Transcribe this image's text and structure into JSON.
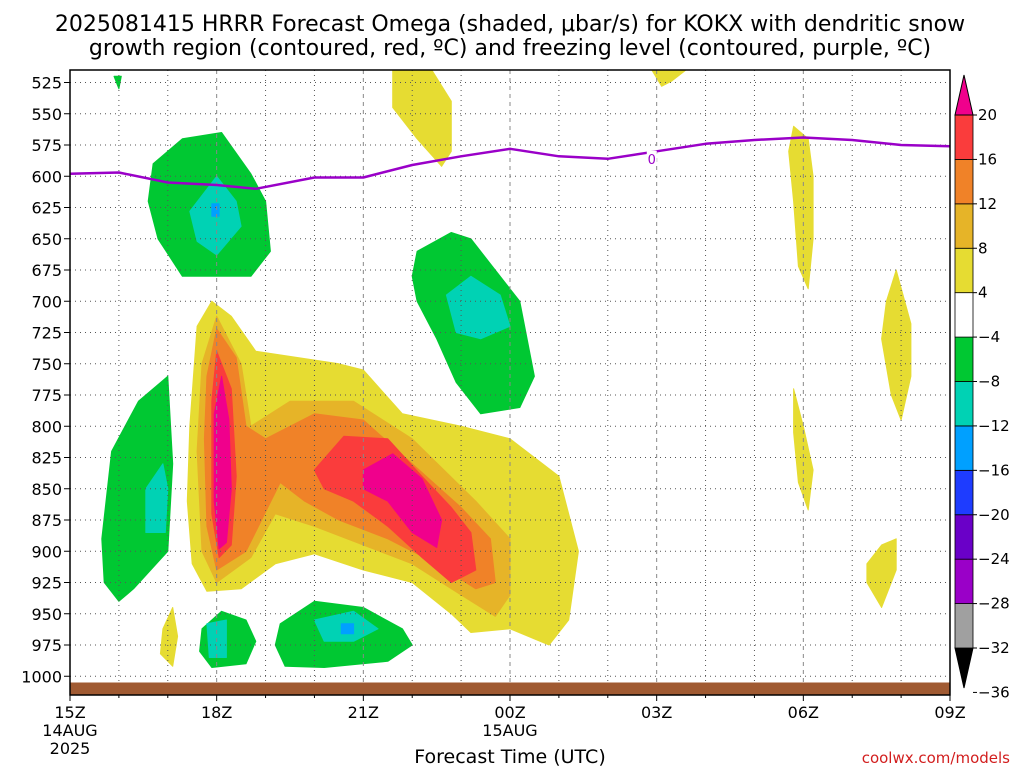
{
  "chart_data": {
    "type": "heatmap",
    "title_line1": "2025081415 HRRR Forecast Omega (shaded, μbar/s) for KOKX with dendritic snow",
    "title_line2": "growth region (contoured, red, ºC) and freezing level (contoured, purple, ºC)",
    "xlabel": "Forecast Time (UTC)",
    "ylabel": "",
    "x_range_hours": [
      0,
      18
    ],
    "y_range_hPa": [
      515,
      1015
    ],
    "y_ticks": [
      525,
      550,
      575,
      600,
      625,
      650,
      675,
      700,
      725,
      750,
      775,
      800,
      825,
      850,
      875,
      900,
      925,
      950,
      975,
      1000
    ],
    "x_ticks": [
      {
        "hour": 0,
        "label": "15Z",
        "sub1": "14AUG",
        "sub2": "2025"
      },
      {
        "hour": 3,
        "label": "18Z",
        "sub1": "",
        "sub2": ""
      },
      {
        "hour": 6,
        "label": "21Z",
        "sub1": "",
        "sub2": ""
      },
      {
        "hour": 9,
        "label": "00Z",
        "sub1": "15AUG",
        "sub2": ""
      },
      {
        "hour": 12,
        "label": "03Z",
        "sub1": "",
        "sub2": ""
      },
      {
        "hour": 15,
        "label": "06Z",
        "sub1": "",
        "sub2": ""
      },
      {
        "hour": 18,
        "label": "09Z",
        "sub1": "",
        "sub2": ""
      }
    ],
    "grid": true,
    "colorbar": {
      "bins": [
        {
          "color": "#000000"
        },
        {
          "color": "#a0a0a0"
        },
        {
          "color": "#9a00c8"
        },
        {
          "color": "#6a00c8"
        },
        {
          "color": "#1e3cff"
        },
        {
          "color": "#00a0ff"
        },
        {
          "color": "#00d2b4"
        },
        {
          "color": "#00c832"
        },
        {
          "color": "#ffffff"
        },
        {
          "color": "#e6dc32"
        },
        {
          "color": "#e6b428"
        },
        {
          "color": "#f08228"
        },
        {
          "color": "#fa3c3c"
        },
        {
          "color": "#f0008c"
        }
      ],
      "labels": [
        "20",
        "16",
        "12",
        "8",
        "4",
        "−4",
        "−8",
        "−12",
        "−16",
        "−20",
        "−24",
        "−28",
        "−32",
        "−36"
      ]
    },
    "freezing_level": {
      "color": "#9a00c8",
      "label": "0",
      "label_at": {
        "hour": 11.9,
        "p": 586
      },
      "points": [
        [
          0,
          598
        ],
        [
          1,
          597
        ],
        [
          2,
          605
        ],
        [
          3,
          607
        ],
        [
          3.8,
          610
        ],
        [
          5,
          601
        ],
        [
          6,
          601
        ],
        [
          7,
          591
        ],
        [
          8,
          584
        ],
        [
          9,
          578
        ],
        [
          10,
          584
        ],
        [
          11,
          586
        ],
        [
          12,
          580
        ],
        [
          13,
          574
        ],
        [
          14,
          571
        ],
        [
          15,
          569
        ],
        [
          16,
          571
        ],
        [
          17,
          575
        ],
        [
          18,
          576
        ]
      ]
    },
    "omega_regions": [
      {
        "color": "#e6dc32",
        "points": [
          [
            6.6,
            515
          ],
          [
            7.4,
            515
          ],
          [
            7.8,
            540
          ],
          [
            7.8,
            580
          ],
          [
            7.6,
            592
          ],
          [
            7.1,
            570
          ],
          [
            6.6,
            545
          ]
        ]
      },
      {
        "color": "#e6dc32",
        "points": [
          [
            11.9,
            515
          ],
          [
            12.6,
            515
          ],
          [
            12.3,
            524
          ],
          [
            12.1,
            528
          ]
        ]
      },
      {
        "color": "#e6dc32",
        "points": [
          [
            14.8,
            560
          ],
          [
            15.1,
            570
          ],
          [
            15.2,
            600
          ],
          [
            15.2,
            650
          ],
          [
            15.1,
            690
          ],
          [
            14.9,
            672
          ],
          [
            14.8,
            620
          ],
          [
            14.7,
            580
          ]
        ]
      },
      {
        "color": "#e6dc32",
        "points": [
          [
            16.9,
            675
          ],
          [
            17.2,
            718
          ],
          [
            17.2,
            760
          ],
          [
            17.0,
            795
          ],
          [
            16.8,
            775
          ],
          [
            16.6,
            730
          ],
          [
            16.7,
            700
          ]
        ]
      },
      {
        "color": "#e6dc32",
        "points": [
          [
            14.8,
            770
          ],
          [
            15.0,
            800
          ],
          [
            15.2,
            835
          ],
          [
            15.1,
            867
          ],
          [
            14.9,
            845
          ],
          [
            14.8,
            805
          ]
        ]
      },
      {
        "color": "#e6dc32",
        "points": [
          [
            16.3,
            910
          ],
          [
            16.6,
            895
          ],
          [
            16.9,
            890
          ],
          [
            16.9,
            915
          ],
          [
            16.6,
            945
          ],
          [
            16.3,
            925
          ]
        ]
      },
      {
        "color": "#e6dc32",
        "points": [
          [
            1.9,
            962
          ],
          [
            2.1,
            945
          ],
          [
            2.2,
            968
          ],
          [
            2.1,
            992
          ],
          [
            1.85,
            982
          ]
        ]
      },
      {
        "color": "#e6dc32",
        "points": [
          [
            2.45,
            800
          ],
          [
            2.6,
            720
          ],
          [
            2.9,
            700
          ],
          [
            3.3,
            712
          ],
          [
            3.8,
            740
          ],
          [
            5.5,
            750
          ],
          [
            6.0,
            755
          ],
          [
            6.8,
            790
          ],
          [
            8.0,
            800
          ],
          [
            9.0,
            810
          ],
          [
            10.0,
            840
          ],
          [
            10.4,
            900
          ],
          [
            10.2,
            955
          ],
          [
            9.8,
            975
          ],
          [
            9.0,
            962
          ],
          [
            8.2,
            965
          ],
          [
            7.8,
            950
          ],
          [
            7.0,
            925
          ],
          [
            6.0,
            915
          ],
          [
            5.0,
            902
          ],
          [
            4.2,
            910
          ],
          [
            3.5,
            930
          ],
          [
            2.8,
            932
          ],
          [
            2.5,
            910
          ],
          [
            2.4,
            860
          ]
        ]
      },
      {
        "color": "#e6b428",
        "points": [
          [
            2.7,
            750
          ],
          [
            3.0,
            712
          ],
          [
            3.5,
            750
          ],
          [
            3.7,
            800
          ],
          [
            4.5,
            780
          ],
          [
            5.8,
            780
          ],
          [
            7.0,
            810
          ],
          [
            8.3,
            860
          ],
          [
            9.0,
            890
          ],
          [
            9.0,
            935
          ],
          [
            8.7,
            952
          ],
          [
            8.0,
            935
          ],
          [
            7.0,
            910
          ],
          [
            6.0,
            895
          ],
          [
            5.0,
            880
          ],
          [
            4.2,
            870
          ],
          [
            3.7,
            905
          ],
          [
            3.0,
            925
          ],
          [
            2.7,
            900
          ],
          [
            2.6,
            820
          ]
        ]
      },
      {
        "color": "#f08228",
        "points": [
          [
            2.8,
            760
          ],
          [
            3.0,
            722
          ],
          [
            3.4,
            745
          ],
          [
            3.6,
            800
          ],
          [
            4.0,
            810
          ],
          [
            5.0,
            790
          ],
          [
            6.0,
            795
          ],
          [
            7.0,
            830
          ],
          [
            8.0,
            865
          ],
          [
            8.6,
            890
          ],
          [
            8.7,
            925
          ],
          [
            8.3,
            930
          ],
          [
            7.5,
            910
          ],
          [
            6.5,
            890
          ],
          [
            5.5,
            875
          ],
          [
            4.8,
            860
          ],
          [
            4.3,
            845
          ],
          [
            3.6,
            900
          ],
          [
            3.0,
            915
          ],
          [
            2.8,
            880
          ],
          [
            2.75,
            810
          ]
        ]
      },
      {
        "color": "#fa3c3c",
        "points": [
          [
            2.9,
            780
          ],
          [
            3.0,
            740
          ],
          [
            3.3,
            770
          ],
          [
            3.4,
            840
          ],
          [
            3.3,
            895
          ],
          [
            3.05,
            905
          ],
          [
            2.9,
            870
          ]
        ]
      },
      {
        "color": "#fa3c3c",
        "points": [
          [
            5.0,
            835
          ],
          [
            5.6,
            808
          ],
          [
            6.5,
            810
          ],
          [
            7.2,
            840
          ],
          [
            7.8,
            865
          ],
          [
            8.2,
            885
          ],
          [
            8.3,
            915
          ],
          [
            7.8,
            925
          ],
          [
            7.2,
            905
          ],
          [
            6.5,
            880
          ],
          [
            5.8,
            860
          ],
          [
            5.2,
            850
          ]
        ]
      },
      {
        "color": "#f0008c",
        "points": [
          [
            2.95,
            790
          ],
          [
            3.1,
            760
          ],
          [
            3.25,
            795
          ],
          [
            3.3,
            850
          ],
          [
            3.2,
            893
          ],
          [
            3.05,
            898
          ],
          [
            2.95,
            860
          ]
        ]
      },
      {
        "color": "#f0008c",
        "points": [
          [
            6.0,
            835
          ],
          [
            6.6,
            822
          ],
          [
            7.2,
            842
          ],
          [
            7.6,
            875
          ],
          [
            7.5,
            897
          ],
          [
            7.0,
            885
          ],
          [
            6.5,
            860
          ],
          [
            6.0,
            850
          ]
        ]
      },
      {
        "color": "#00c832",
        "points": [
          [
            0.9,
            520
          ],
          [
            1.05,
            520
          ],
          [
            1.0,
            530
          ]
        ]
      },
      {
        "color": "#00c832",
        "points": [
          [
            1.7,
            590
          ],
          [
            2.3,
            570
          ],
          [
            3.1,
            565
          ],
          [
            3.7,
            598
          ],
          [
            4.0,
            620
          ],
          [
            4.1,
            660
          ],
          [
            3.7,
            680
          ],
          [
            2.3,
            680
          ],
          [
            1.8,
            650
          ],
          [
            1.6,
            620
          ]
        ]
      },
      {
        "color": "#00d2b4",
        "points": [
          [
            2.45,
            628
          ],
          [
            3.0,
            600
          ],
          [
            3.4,
            620
          ],
          [
            3.5,
            640
          ],
          [
            3.0,
            663
          ],
          [
            2.6,
            652
          ]
        ]
      },
      {
        "color": "#00a0ff",
        "points": [
          [
            2.9,
            622
          ],
          [
            3.05,
            622
          ],
          [
            3.05,
            632
          ],
          [
            2.9,
            632
          ]
        ]
      },
      {
        "color": "#00c832",
        "points": [
          [
            7.1,
            660
          ],
          [
            7.8,
            645
          ],
          [
            8.2,
            650
          ],
          [
            8.6,
            670
          ],
          [
            9.2,
            700
          ],
          [
            9.5,
            760
          ],
          [
            9.2,
            785
          ],
          [
            8.4,
            790
          ],
          [
            7.9,
            765
          ],
          [
            7.5,
            730
          ],
          [
            7.1,
            700
          ],
          [
            7.0,
            680
          ]
        ]
      },
      {
        "color": "#00d2b4",
        "points": [
          [
            7.7,
            695
          ],
          [
            8.2,
            680
          ],
          [
            8.8,
            695
          ],
          [
            9.0,
            720
          ],
          [
            8.4,
            730
          ],
          [
            7.9,
            725
          ]
        ]
      },
      {
        "color": "#00c832",
        "points": [
          [
            0.65,
            890
          ],
          [
            0.85,
            820
          ],
          [
            1.4,
            780
          ],
          [
            2.0,
            760
          ],
          [
            2.1,
            830
          ],
          [
            2.0,
            900
          ],
          [
            1.3,
            930
          ],
          [
            1.0,
            940
          ],
          [
            0.7,
            925
          ]
        ]
      },
      {
        "color": "#00d2b4",
        "points": [
          [
            1.55,
            850
          ],
          [
            1.9,
            830
          ],
          [
            2.0,
            850
          ],
          [
            1.95,
            885
          ],
          [
            1.55,
            885
          ]
        ]
      },
      {
        "color": "#00c832",
        "points": [
          [
            2.7,
            962
          ],
          [
            3.1,
            948
          ],
          [
            3.6,
            955
          ],
          [
            3.8,
            972
          ],
          [
            3.6,
            990
          ],
          [
            2.9,
            993
          ],
          [
            2.65,
            980
          ]
        ]
      },
      {
        "color": "#00d2b4",
        "points": [
          [
            2.8,
            958
          ],
          [
            3.2,
            955
          ],
          [
            3.2,
            985
          ],
          [
            2.85,
            985
          ]
        ]
      },
      {
        "color": "#00c832",
        "points": [
          [
            4.3,
            958
          ],
          [
            5.0,
            940
          ],
          [
            6.0,
            945
          ],
          [
            6.8,
            962
          ],
          [
            7.0,
            975
          ],
          [
            6.5,
            988
          ],
          [
            5.2,
            993
          ],
          [
            4.4,
            992
          ],
          [
            4.2,
            975
          ]
        ]
      },
      {
        "color": "#00d2b4",
        "points": [
          [
            5.0,
            955
          ],
          [
            5.8,
            948
          ],
          [
            6.3,
            962
          ],
          [
            5.8,
            972
          ],
          [
            5.2,
            972
          ]
        ]
      },
      {
        "color": "#00a0ff",
        "points": [
          [
            5.55,
            958
          ],
          [
            5.8,
            958
          ],
          [
            5.8,
            966
          ],
          [
            5.55,
            966
          ]
        ]
      }
    ],
    "terrain": {
      "color": "#a05a32",
      "p_top": 1005,
      "p_bottom": 1015
    }
  },
  "credit": "coolwx.com/models"
}
